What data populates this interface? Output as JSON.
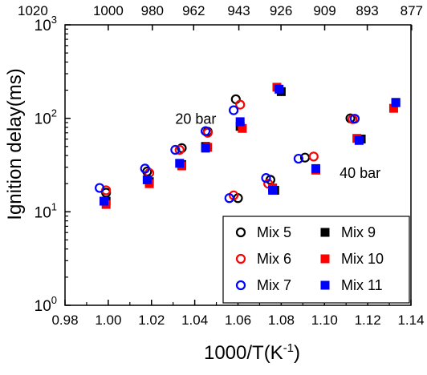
{
  "chart_data": {
    "type": "scatter",
    "title": "",
    "xlabel": "1000/T(K",
    "xlabel_sup": "-1",
    "xlabel_close": ")",
    "ylabel": "Ignition delay(ms)",
    "xlim": [
      0.98,
      1.14
    ],
    "ylim": [
      1,
      1000
    ],
    "yscale": "log",
    "x_ticks": [
      0.98,
      1.0,
      1.02,
      1.04,
      1.06,
      1.08,
      1.1,
      1.12,
      1.14
    ],
    "x_tick_labels": [
      "0.98",
      "1.00",
      "1.02",
      "1.04",
      "1.06",
      "1.08",
      "1.10",
      "1.12",
      "1.14"
    ],
    "y_ticks": [
      1,
      10,
      100,
      1000
    ],
    "y_tick_base": "10",
    "y_tick_exponents": [
      "0",
      "1",
      "2",
      "3"
    ],
    "top_axis": {
      "values": [
        1.0,
        1.0204,
        1.0395,
        1.0604,
        1.0799,
        1.1001,
        1.1198,
        1.1403
      ],
      "labels": [
        "1000",
        "980",
        "962",
        "943",
        "926",
        "909",
        "893",
        "877"
      ],
      "extra_label": "1020"
    },
    "annotations": [
      {
        "text": "20 bar",
        "x": 1.031,
        "y": 87
      },
      {
        "text": "40 bar",
        "x": 1.107,
        "y": 23
      }
    ],
    "legend": {
      "position": "bottom-right",
      "columns": 2
    },
    "series": [
      {
        "name": "Mix 5",
        "marker": "open-circle",
        "color": "#000000",
        "points": [
          [
            0.999,
            16
          ],
          [
            1.018,
            27
          ],
          [
            1.034,
            48
          ],
          [
            1.046,
            72
          ],
          [
            1.059,
            160
          ],
          [
            1.06,
            14
          ],
          [
            1.075,
            22
          ],
          [
            1.091,
            38
          ],
          [
            1.112,
            100
          ]
        ]
      },
      {
        "name": "Mix 6",
        "marker": "open-circle",
        "color": "#ff0000",
        "points": [
          [
            0.999,
            17
          ],
          [
            1.019,
            26
          ],
          [
            1.033,
            46
          ],
          [
            1.046,
            70
          ],
          [
            1.061,
            140
          ],
          [
            1.058,
            15
          ],
          [
            1.074,
            20
          ],
          [
            1.095,
            39
          ],
          [
            1.113,
            98
          ]
        ]
      },
      {
        "name": "Mix 7",
        "marker": "open-circle",
        "color": "#0000ff",
        "points": [
          [
            0.996,
            18
          ],
          [
            1.017,
            29
          ],
          [
            1.031,
            46
          ],
          [
            1.045,
            73
          ],
          [
            1.058,
            122
          ],
          [
            1.056,
            14
          ],
          [
            1.073,
            23
          ],
          [
            1.088,
            37
          ],
          [
            1.114,
            99
          ]
        ]
      },
      {
        "name": "Mix 9",
        "marker": "filled-square",
        "color": "#000000",
        "points": [
          [
            0.999,
            13
          ],
          [
            1.019,
            21
          ],
          [
            1.034,
            32
          ],
          [
            1.045,
            50
          ],
          [
            1.061,
            82
          ],
          [
            1.077,
            17
          ],
          [
            1.08,
            193
          ],
          [
            1.096,
            28
          ],
          [
            1.117,
            60
          ],
          [
            1.133,
            148
          ]
        ]
      },
      {
        "name": "Mix 10",
        "marker": "filled-square",
        "color": "#ff0000",
        "points": [
          [
            0.999,
            12
          ],
          [
            1.019,
            20
          ],
          [
            1.034,
            31
          ],
          [
            1.046,
            49
          ],
          [
            1.062,
            78
          ],
          [
            1.076,
            18
          ],
          [
            1.078,
            215
          ],
          [
            1.096,
            28
          ],
          [
            1.115,
            61
          ],
          [
            1.132,
            128
          ]
        ]
      },
      {
        "name": "Mix 11",
        "marker": "filled-square",
        "color": "#0000ff",
        "points": [
          [
            0.998,
            13
          ],
          [
            1.018,
            22
          ],
          [
            1.033,
            33
          ],
          [
            1.045,
            48
          ],
          [
            1.061,
            92
          ],
          [
            1.076,
            17
          ],
          [
            1.079,
            205
          ],
          [
            1.096,
            29
          ],
          [
            1.116,
            58
          ],
          [
            1.133,
            147
          ]
        ]
      }
    ]
  }
}
